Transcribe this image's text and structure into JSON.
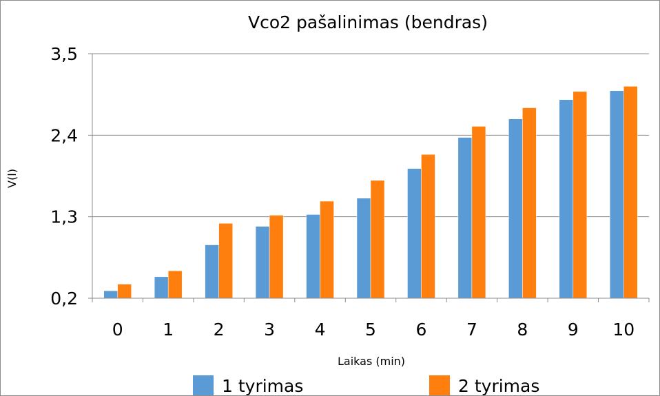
{
  "chart_data": {
    "type": "bar",
    "title": "Vco2 pašalinimas (bendras)",
    "xlabel": "Laikas (min)",
    "ylabel": "V(l)",
    "categories": [
      "0",
      "1",
      "2",
      "3",
      "4",
      "5",
      "6",
      "7",
      "8",
      "9",
      "10"
    ],
    "ylim": [
      0.2,
      3.5
    ],
    "yticks": [
      "0,2",
      "1,3",
      "2,4",
      "3,5"
    ],
    "ytick_values": [
      0.2,
      1.3,
      2.4,
      3.5
    ],
    "grid": true,
    "legend_position": "bottom",
    "series": [
      {
        "name": "1 tyrimas",
        "color": "#5b9bd5",
        "values": [
          0.3,
          0.49,
          0.92,
          1.17,
          1.33,
          1.55,
          1.95,
          2.37,
          2.62,
          2.88,
          3.0
        ]
      },
      {
        "name": "2 tyrimas",
        "color": "#ff7f0e",
        "values": [
          0.39,
          0.57,
          1.21,
          1.32,
          1.51,
          1.79,
          2.14,
          2.52,
          2.77,
          2.99,
          3.06
        ]
      }
    ]
  }
}
